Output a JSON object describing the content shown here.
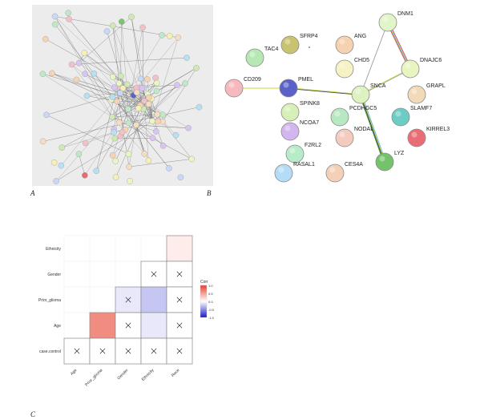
{
  "panels": {
    "a": "A",
    "b": "B",
    "c": "C"
  },
  "network_b": {
    "nodes": [
      {
        "id": "DNM1",
        "color": "#e2f5c8"
      },
      {
        "id": "SFRP4",
        "color": "#c9c26f"
      },
      {
        "id": "TAC4",
        "color": "#b6e8b4"
      },
      {
        "id": "ANG",
        "color": "#f7d2b1"
      },
      {
        "id": "DNAJC6",
        "color": "#e8f5c0"
      },
      {
        "id": "CHD5",
        "color": "#f6f2c4"
      },
      {
        "id": "CD209",
        "color": "#f6b9be"
      },
      {
        "id": "PMEL",
        "color": "#5a61c9"
      },
      {
        "id": "GRAPL",
        "color": "#f1dab9"
      },
      {
        "id": "SNCA",
        "color": "#ddf2c1"
      },
      {
        "id": "SPINK8",
        "color": "#d8efb8"
      },
      {
        "id": "PCDHGC5",
        "color": "#b8e8c2"
      },
      {
        "id": "SLAMF7",
        "color": "#6ccdc4"
      },
      {
        "id": "NCOA7",
        "color": "#d3b5f0"
      },
      {
        "id": "NODAL",
        "color": "#f3cbbf"
      },
      {
        "id": "KIRREL3",
        "color": "#ea6c74"
      },
      {
        "id": "F2RL2",
        "color": "#b8ecc8"
      },
      {
        "id": "RASAL1",
        "color": "#b4dcf6"
      },
      {
        "id": "CES4A",
        "color": "#f5d0b8"
      },
      {
        "id": "LYZ",
        "color": "#74c36a"
      }
    ]
  },
  "chart_data": {
    "type": "heatmap",
    "rows": [
      "Ethnicity",
      "Gender",
      "Prior_glioma",
      "Age",
      "case.control"
    ],
    "columns": [
      "Age",
      "Prior_glioma",
      "Gender",
      "Ethnicity",
      "Race"
    ],
    "cells": [
      {
        "row": "Ethnicity",
        "col": "Race",
        "value": 0.1,
        "significant": true
      },
      {
        "row": "Gender",
        "col": "Ethnicity",
        "value": 0.0,
        "significant": false
      },
      {
        "row": "Gender",
        "col": "Race",
        "value": 0.0,
        "significant": false
      },
      {
        "row": "Prior_glioma",
        "col": "Gender",
        "value": -0.1,
        "significant": false
      },
      {
        "row": "Prior_glioma",
        "col": "Ethnicity",
        "value": -0.25,
        "significant": true
      },
      {
        "row": "Prior_glioma",
        "col": "Race",
        "value": 0.0,
        "significant": false
      },
      {
        "row": "Age",
        "col": "Prior_glioma",
        "value": 0.6,
        "significant": true
      },
      {
        "row": "Age",
        "col": "Gender",
        "value": 0.0,
        "significant": false
      },
      {
        "row": "Age",
        "col": "Ethnicity",
        "value": -0.1,
        "significant": true
      },
      {
        "row": "Age",
        "col": "Race",
        "value": 0.0,
        "significant": false
      },
      {
        "row": "case.control",
        "col": "Age",
        "value": 0.0,
        "significant": false
      },
      {
        "row": "case.control",
        "col": "Prior_glioma",
        "value": 0.0,
        "significant": false
      },
      {
        "row": "case.control",
        "col": "Gender",
        "value": 0.0,
        "significant": false
      },
      {
        "row": "case.control",
        "col": "Ethnicity",
        "value": 0.0,
        "significant": false
      },
      {
        "row": "case.control",
        "col": "Race",
        "value": 0.0,
        "significant": false
      }
    ],
    "legend": {
      "title": "Corr",
      "ticks": [
        "1.0",
        "0.5",
        "0.0",
        "-0.5",
        "-1.0"
      ],
      "high_color": "#e8412c",
      "mid_color": "#ffffff",
      "low_color": "#1a1acc"
    }
  }
}
